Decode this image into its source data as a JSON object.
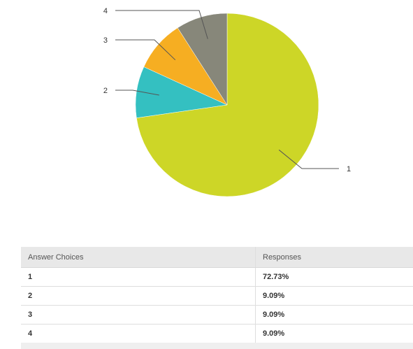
{
  "chart_data": {
    "type": "pie",
    "series": [
      {
        "label": "1",
        "value": 72.73,
        "color": "#cdd627"
      },
      {
        "label": "2",
        "value": 9.09,
        "color": "#34c0c1"
      },
      {
        "label": "3",
        "value": 9.09,
        "color": "#f6ae22"
      },
      {
        "label": "4",
        "value": 9.09,
        "color": "#87877a"
      }
    ],
    "start": "12 o'clock",
    "direction": "clockwise"
  },
  "table": {
    "headers": {
      "choice": "Answer Choices",
      "responses": "Responses"
    },
    "rows": [
      {
        "choice": "1",
        "responses": "72.73%"
      },
      {
        "choice": "2",
        "responses": "9.09%"
      },
      {
        "choice": "3",
        "responses": "9.09%"
      },
      {
        "choice": "4",
        "responses": "9.09%"
      }
    ]
  }
}
